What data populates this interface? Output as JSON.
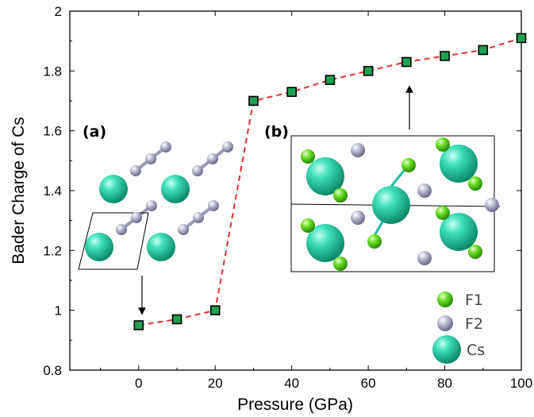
{
  "chart_data": {
    "type": "line",
    "xlabel": "Pressure (GPa)",
    "ylabel": "Bader Charge of Cs",
    "xlim": [
      -18,
      100
    ],
    "ylim": [
      0.8,
      2.0
    ],
    "x_ticks": [
      "0",
      "20",
      "40",
      "60",
      "80",
      "100"
    ],
    "y_ticks": [
      "0.8",
      "1",
      "1.2",
      "1.4",
      "1.6",
      "1.8",
      "2"
    ],
    "series": [
      {
        "x": [
          0,
          10,
          20,
          30,
          40,
          50,
          60,
          70,
          80,
          90,
          100
        ],
        "y": [
          0.95,
          0.97,
          1.0,
          1.7,
          1.73,
          1.77,
          1.8,
          1.83,
          1.85,
          1.87,
          1.91
        ],
        "line_color": "#e03030",
        "line_style": "dashed",
        "marker": "square",
        "marker_color": "#1fa050"
      }
    ],
    "panel_labels": [
      "(a)",
      "(b)"
    ],
    "legend": [
      {
        "label": "F1",
        "color": "#55dd22"
      },
      {
        "label": "F2",
        "color": "#a8a8c8"
      },
      {
        "label": "Cs",
        "color": "#22c8a0"
      }
    ],
    "grid": false
  }
}
